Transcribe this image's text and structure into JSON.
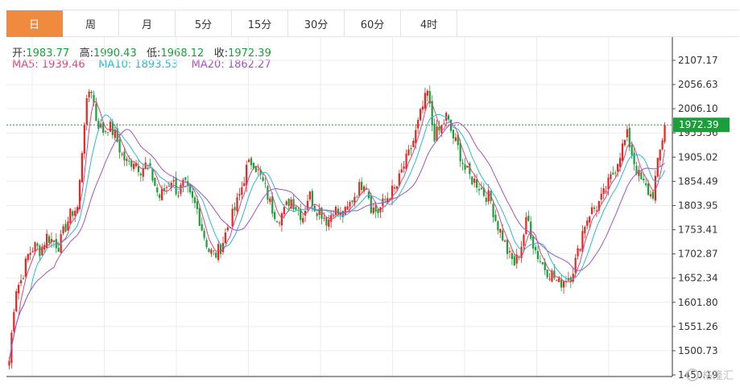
{
  "tabs": [
    "日",
    "周",
    "月",
    "5分",
    "15分",
    "30分",
    "60分",
    "4时"
  ],
  "active_tab": 0,
  "info": {
    "open_label": "开:",
    "open": "1983.77",
    "high_label": "高:",
    "high": "1990.43",
    "low_label": "低:",
    "low": "1968.12",
    "close_label": "收:",
    "close": "1972.39",
    "ma5_label": "MA5:",
    "ma5": "1939.46",
    "ma10_label": "MA10:",
    "ma10": "1893.53",
    "ma20_label": "MA20:",
    "ma20": "1862.27"
  },
  "watermark": "格隆汇",
  "chart_data": {
    "type": "candlestick",
    "y_ticks": [
      "2107.17",
      "2056.63",
      "2006.10",
      "1955.56",
      "1905.02",
      "1854.49",
      "1803.95",
      "1753.41",
      "1702.87",
      "1652.34",
      "1601.80",
      "1551.26",
      "1500.73",
      "1450.19"
    ],
    "ylim": [
      1450.19,
      2107.17
    ],
    "last_price": "1972.39",
    "colors": {
      "up": "#e8251f",
      "down": "#1aa03a",
      "ma5": "#e0457b",
      "ma10": "#2bbad5",
      "ma20": "#a451c9",
      "price_tag": "#1aa03a"
    },
    "series": [
      {
        "name": "MA5",
        "value": "1939.46"
      },
      {
        "name": "MA10",
        "value": "1893.53"
      },
      {
        "name": "MA20",
        "value": "1862.27"
      }
    ],
    "close_path": [
      1480,
      1630,
      1650,
      1700,
      1720,
      1710,
      1740,
      1730,
      1720,
      1760,
      1790,
      1800,
      1980,
      2060,
      1980,
      1960,
      1970,
      1950,
      1910,
      1890,
      1900,
      1880,
      1890,
      1860,
      1820,
      1840,
      1860,
      1830,
      1850,
      1820,
      1800,
      1750,
      1710,
      1700,
      1720,
      1760,
      1790,
      1830,
      1880,
      1900,
      1870,
      1840,
      1800,
      1780,
      1790,
      1820,
      1800,
      1780,
      1830,
      1800,
      1790,
      1770,
      1800,
      1780,
      1790,
      1820,
      1840,
      1860,
      1800,
      1790,
      1810,
      1830,
      1840,
      1880,
      1910,
      1950,
      2000,
      2040,
      1950,
      1960,
      1990,
      1950,
      1920,
      1880,
      1860,
      1850,
      1830,
      1820,
      1770,
      1740,
      1700,
      1680,
      1720,
      1780,
      1720,
      1690,
      1670,
      1660,
      1640,
      1650,
      1660,
      1700,
      1760,
      1790,
      1800,
      1820,
      1850,
      1880,
      1920,
      1950,
      1900,
      1860,
      1840,
      1820,
      1900,
      1972
    ]
  }
}
